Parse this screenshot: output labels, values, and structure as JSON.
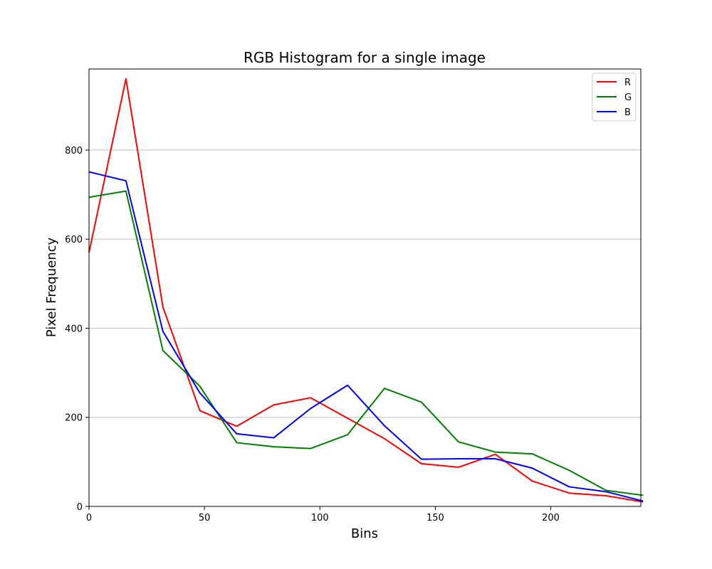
{
  "chart_data": {
    "type": "line",
    "title": "RGB Histogram for a single image",
    "xlabel": "Bins",
    "ylabel": "Pixel Frequency",
    "x": [
      0,
      16,
      32,
      48,
      64,
      80,
      96,
      112,
      128,
      144,
      160,
      176,
      192,
      208,
      224,
      240
    ],
    "series": [
      {
        "name": "R",
        "color": "#ff0000",
        "values": [
          570,
          960,
          448,
          215,
          180,
          228,
          244,
          198,
          152,
          96,
          88,
          117,
          57,
          30,
          24,
          10
        ]
      },
      {
        "name": "G",
        "color": "#008000",
        "values": [
          694,
          708,
          350,
          270,
          143,
          134,
          130,
          161,
          265,
          234,
          145,
          122,
          118,
          81,
          36,
          25
        ]
      },
      {
        "name": "B",
        "color": "#0000ff",
        "values": [
          751,
          731,
          393,
          255,
          163,
          154,
          220,
          272,
          181,
          106,
          107,
          107,
          86,
          44,
          33,
          12
        ]
      }
    ],
    "xlim": [
      0,
      239
    ],
    "ylim": [
      0,
      982
    ],
    "xticks": [
      0,
      50,
      100,
      150,
      200
    ],
    "yticks": [
      0,
      200,
      400,
      600,
      800
    ],
    "grid": "horizontal",
    "legend": "top-right"
  }
}
